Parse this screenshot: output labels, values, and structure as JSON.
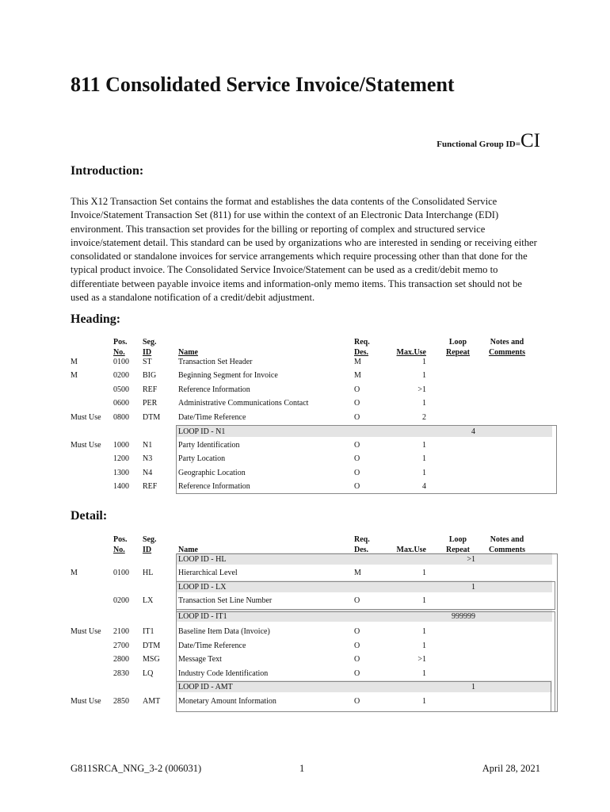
{
  "title": "811 Consolidated Service Invoice/Statement",
  "functional_group_label": "Functional Group ID=",
  "functional_group_id": "CI",
  "intro_heading": "Introduction:",
  "intro_text": "This X12 Transaction Set contains the format and establishes the data contents of the Consolidated Service Invoice/Statement Transaction Set (811) for use within the context of an Electronic Data Interchange (EDI) environment. This transaction set provides for the billing or reporting of complex and structured service invoice/statement detail.  This standard can be used by organizations who are interested in sending or receiving either consolidated or standalone invoices for service arrangements which require processing other than that done for the typical product invoice.  The Consolidated Service Invoice/Statement can be used as a credit/debit memo to differentiate between payable invoice items and information-only memo items. This transaction set should not be used as a standalone notification of a credit/debit adjustment.",
  "columns": {
    "pos1": "Pos.",
    "pos2": "No.",
    "seg1": "Seg.",
    "seg2": "ID",
    "name": "Name",
    "req1": "Req.",
    "req2": "Des.",
    "max": "Max.Use",
    "loop1": "Loop",
    "loop2": "Repeat",
    "notes1": "Notes and",
    "notes2": "Comments"
  },
  "heading": {
    "label": "Heading:",
    "rows": [
      {
        "usage": "M",
        "pos": "0100",
        "seg": "ST",
        "name": "Transaction Set Header",
        "req": "M",
        "max": "1"
      },
      {
        "usage": "M",
        "pos": "0200",
        "seg": "BIG",
        "name": "Beginning Segment for Invoice",
        "req": "M",
        "max": "1"
      },
      {
        "usage": "",
        "pos": "0500",
        "seg": "REF",
        "name": "Reference Information",
        "req": "O",
        "max": ">1"
      },
      {
        "usage": "",
        "pos": "0600",
        "seg": "PER",
        "name": "Administrative Communications Contact",
        "req": "O",
        "max": "1"
      },
      {
        "usage": "Must Use",
        "pos": "0800",
        "seg": "DTM",
        "name": "Date/Time Reference",
        "req": "O",
        "max": "2"
      },
      {
        "loop": "LOOP ID - N1",
        "repeat": "4"
      },
      {
        "usage": "Must Use",
        "pos": "1000",
        "seg": "N1",
        "name": "Party Identification",
        "req": "O",
        "max": "1"
      },
      {
        "usage": "",
        "pos": "1200",
        "seg": "N3",
        "name": "Party Location",
        "req": "O",
        "max": "1"
      },
      {
        "usage": "",
        "pos": "1300",
        "seg": "N4",
        "name": "Geographic Location",
        "req": "O",
        "max": "1"
      },
      {
        "usage": "",
        "pos": "1400",
        "seg": "REF",
        "name": "Reference Information",
        "req": "O",
        "max": "4"
      }
    ]
  },
  "detail": {
    "label": "Detail:",
    "rows": [
      {
        "loop": "LOOP ID - HL",
        "repeat": ">1"
      },
      {
        "usage": "M",
        "pos": "0100",
        "seg": "HL",
        "name": "Hierarchical Level",
        "req": "M",
        "max": "1"
      },
      {
        "loop": "LOOP ID - LX",
        "repeat": "1"
      },
      {
        "usage": "",
        "pos": "0200",
        "seg": "LX",
        "name": "Transaction Set Line Number",
        "req": "O",
        "max": "1"
      },
      {
        "loop": "LOOP ID - IT1",
        "repeat": "999999"
      },
      {
        "usage": "Must Use",
        "pos": "2100",
        "seg": "IT1",
        "name": "Baseline Item Data (Invoice)",
        "req": "O",
        "max": "1"
      },
      {
        "usage": "",
        "pos": "2700",
        "seg": "DTM",
        "name": "Date/Time Reference",
        "req": "O",
        "max": "1"
      },
      {
        "usage": "",
        "pos": "2800",
        "seg": "MSG",
        "name": "Message Text",
        "req": "O",
        "max": ">1"
      },
      {
        "usage": "",
        "pos": "2830",
        "seg": "LQ",
        "name": "Industry Code Identification",
        "req": "O",
        "max": "1"
      },
      {
        "loop": "LOOP ID - AMT",
        "repeat": "1"
      },
      {
        "usage": "Must Use",
        "pos": "2850",
        "seg": "AMT",
        "name": "Monetary Amount Information",
        "req": "O",
        "max": "1"
      }
    ]
  },
  "footer": {
    "doc_id": "G811SRCA_NNG_3-2 (006031)",
    "page": "1",
    "date": "April 28, 2021"
  }
}
